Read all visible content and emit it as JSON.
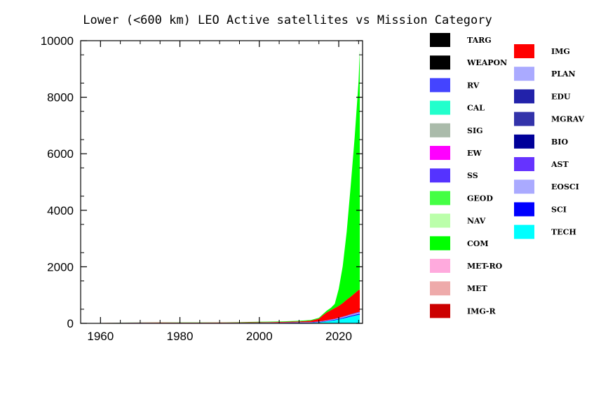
{
  "chart_data": {
    "type": "area",
    "title": "Lower (<600 km) LEO Active satellites vs Mission Category",
    "xlabel": "",
    "ylabel": "",
    "xlim": [
      1955,
      2026
    ],
    "ylim": [
      0,
      10000
    ],
    "x_ticks": [
      1960,
      1980,
      2000,
      2020
    ],
    "y_ticks": [
      0,
      2000,
      4000,
      6000,
      8000,
      10000
    ],
    "x_tick_labels": [
      "1960",
      "1980",
      "2000",
      "2020"
    ],
    "y_tick_labels": [
      "0",
      "2000",
      "4000",
      "6000",
      "8000",
      "10000"
    ],
    "grid": false,
    "legend": [
      {
        "name": "TARG",
        "color": "#000000",
        "column": 1
      },
      {
        "name": "WEAPON",
        "color": "#000000",
        "column": 1
      },
      {
        "name": "RV",
        "color": "#4444ff",
        "column": 1
      },
      {
        "name": "CAL",
        "color": "#22ffcc",
        "column": 1
      },
      {
        "name": "SIG",
        "color": "#aabbaa",
        "column": 1
      },
      {
        "name": "EW",
        "color": "#ff00ff",
        "column": 1
      },
      {
        "name": "SS",
        "color": "#5533ff",
        "column": 1
      },
      {
        "name": "GEOD",
        "color": "#44ff44",
        "column": 1
      },
      {
        "name": "NAV",
        "color": "#bbffaa",
        "column": 1
      },
      {
        "name": "COM",
        "color": "#00ff00",
        "column": 1
      },
      {
        "name": "MET-RO",
        "color": "#ffaadd",
        "column": 1
      },
      {
        "name": "MET",
        "color": "#eeaaaa",
        "column": 1
      },
      {
        "name": "IMG-R",
        "color": "#cc0000",
        "column": 1
      },
      {
        "name": "IMG",
        "color": "#ff0000",
        "column": 2
      },
      {
        "name": "PLAN",
        "color": "#aaaaff",
        "column": 2
      },
      {
        "name": "EDU",
        "color": "#2222aa",
        "column": 2
      },
      {
        "name": "MGRAV",
        "color": "#3333aa",
        "column": 2
      },
      {
        "name": "BIO",
        "color": "#000099",
        "column": 2
      },
      {
        "name": "AST",
        "color": "#6633ff",
        "column": 2
      },
      {
        "name": "EOSCI",
        "color": "#aaaaff",
        "column": 2
      },
      {
        "name": "SCI",
        "color": "#0000ff",
        "column": 2
      },
      {
        "name": "TECH",
        "color": "#00ffff",
        "column": 2
      }
    ],
    "x": [
      1957,
      1960,
      1965,
      1970,
      1975,
      1980,
      1985,
      1990,
      1995,
      2000,
      2005,
      2010,
      2013,
      2015,
      2016,
      2017,
      2018,
      2019,
      2020,
      2021,
      2022,
      2023,
      2024,
      2025,
      2025.3
    ],
    "series": [
      {
        "name": "TECH",
        "color": "#00ffff",
        "values": [
          0,
          3,
          5,
          6,
          6,
          6,
          6,
          6,
          7,
          8,
          10,
          15,
          20,
          35,
          50,
          70,
          90,
          110,
          140,
          170,
          200,
          240,
          270,
          300,
          300
        ]
      },
      {
        "name": "SCI",
        "color": "#0000ff",
        "values": [
          1,
          6,
          10,
          10,
          8,
          6,
          6,
          6,
          6,
          8,
          8,
          10,
          10,
          12,
          14,
          16,
          18,
          20,
          22,
          25,
          28,
          30,
          32,
          35,
          35
        ]
      },
      {
        "name": "EOSCI",
        "color": "#aaaaff",
        "values": [
          0,
          0,
          2,
          3,
          3,
          3,
          4,
          4,
          5,
          5,
          6,
          8,
          8,
          10,
          12,
          15,
          18,
          20,
          24,
          28,
          32,
          36,
          40,
          45,
          45
        ]
      },
      {
        "name": "AST",
        "color": "#6633ff",
        "values": [
          0,
          0,
          1,
          2,
          3,
          3,
          3,
          4,
          4,
          5,
          5,
          6,
          6,
          7,
          8,
          8,
          9,
          10,
          12,
          14,
          16,
          18,
          20,
          22,
          22
        ]
      },
      {
        "name": "IMG",
        "color": "#ff0000",
        "values": [
          0,
          2,
          5,
          8,
          10,
          10,
          10,
          10,
          12,
          15,
          20,
          30,
          50,
          100,
          200,
          280,
          330,
          380,
          420,
          480,
          560,
          620,
          700,
          780,
          780
        ]
      },
      {
        "name": "COM",
        "color": "#00ff00",
        "values": [
          0,
          0,
          2,
          3,
          5,
          5,
          5,
          5,
          8,
          15,
          15,
          20,
          25,
          30,
          40,
          60,
          80,
          150,
          600,
          1300,
          2400,
          3900,
          5500,
          7400,
          8500
        ]
      }
    ]
  }
}
